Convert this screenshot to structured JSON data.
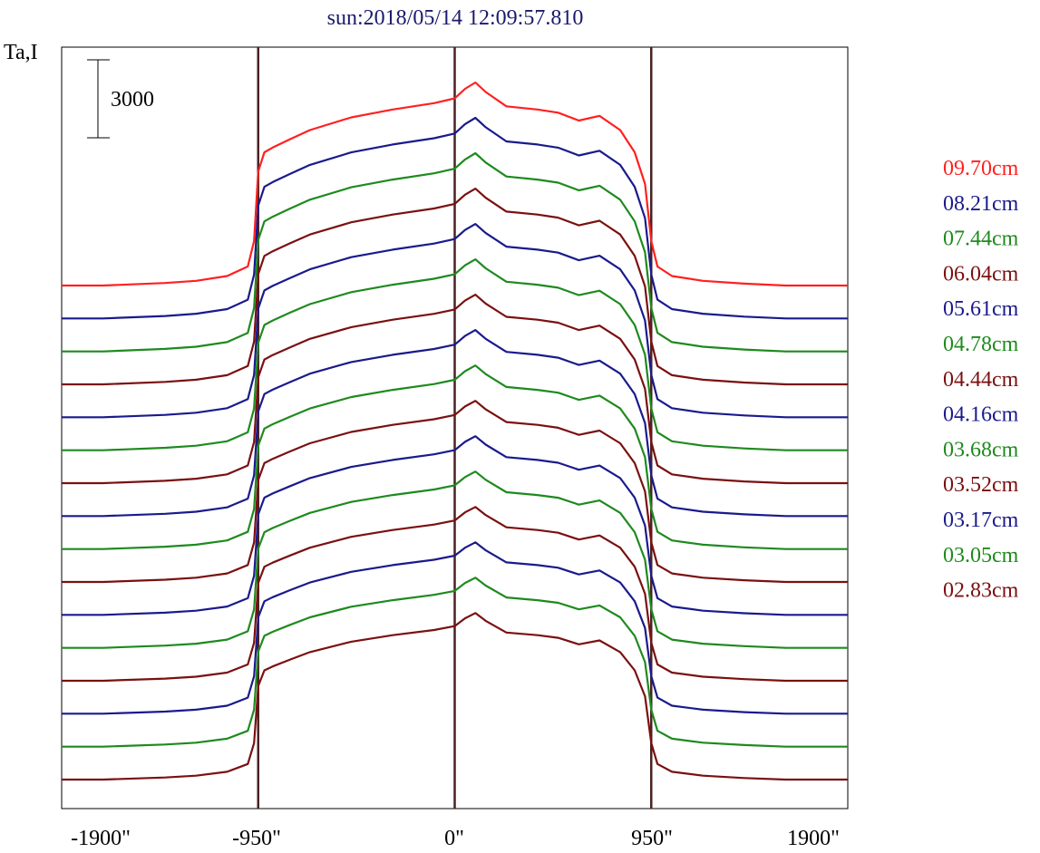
{
  "chart_data": {
    "type": "line",
    "title": "sun:2018/05/14 12:09:57.810",
    "ylabel": "Ta,I",
    "scale_bar_label": "3000",
    "x_ticks": [
      "-1900\"",
      "-950\"",
      "0\"",
      "950\"",
      "1900\""
    ],
    "vertical_markers": [
      -950,
      0,
      950
    ],
    "xlim": [
      -1900,
      1900
    ],
    "grid": false,
    "legend_position": "right",
    "series": [
      {
        "name": "09.70cm",
        "color": "#ff2020"
      },
      {
        "name": "08.21cm",
        "color": "#1a1a8c"
      },
      {
        "name": "07.44cm",
        "color": "#1e8a1e"
      },
      {
        "name": "06.04cm",
        "color": "#7a1010"
      },
      {
        "name": "05.61cm",
        "color": "#1a1a8c"
      },
      {
        "name": "04.78cm",
        "color": "#1e8a1e"
      },
      {
        "name": "04.44cm",
        "color": "#7a1010"
      },
      {
        "name": "04.16cm",
        "color": "#1a1a8c"
      },
      {
        "name": "03.68cm",
        "color": "#1e8a1e"
      },
      {
        "name": "03.52cm",
        "color": "#7a1010"
      },
      {
        "name": "03.17cm",
        "color": "#1a1a8c"
      },
      {
        "name": "03.05cm",
        "color": "#1e8a1e"
      },
      {
        "name": "02.83cm",
        "color": "#7a1010"
      },
      {
        "name": "",
        "color": "#1a1a8c"
      },
      {
        "name": "",
        "color": "#1e8a1e"
      },
      {
        "name": "",
        "color": "#7a1010"
      }
    ],
    "profile": {
      "x": [
        -1900,
        -1700,
        -1400,
        -1250,
        -1100,
        -1000,
        -970,
        -950,
        -920,
        -880,
        -800,
        -700,
        -500,
        -300,
        -100,
        0,
        50,
        100,
        150,
        250,
        400,
        500,
        600,
        700,
        800,
        870,
        920,
        950,
        980,
        1050,
        1200,
        1400,
        1600,
        1900
      ],
      "y": [
        0,
        0,
        0.08,
        0.15,
        0.3,
        0.6,
        1.4,
        3.6,
        4.2,
        4.35,
        4.6,
        4.9,
        5.3,
        5.55,
        5.75,
        5.9,
        6.2,
        6.4,
        6.1,
        5.65,
        5.55,
        5.45,
        5.2,
        5.35,
        4.9,
        4.2,
        3.2,
        1.4,
        0.6,
        0.3,
        0.15,
        0.06,
        0,
        0
      ]
    }
  },
  "legend_items": [
    "09.70cm",
    "08.21cm",
    "07.44cm",
    "06.04cm",
    "05.61cm",
    "04.78cm",
    "04.44cm",
    "04.16cm",
    "03.68cm",
    "03.52cm",
    "03.17cm",
    "03.05cm",
    "02.83cm"
  ]
}
